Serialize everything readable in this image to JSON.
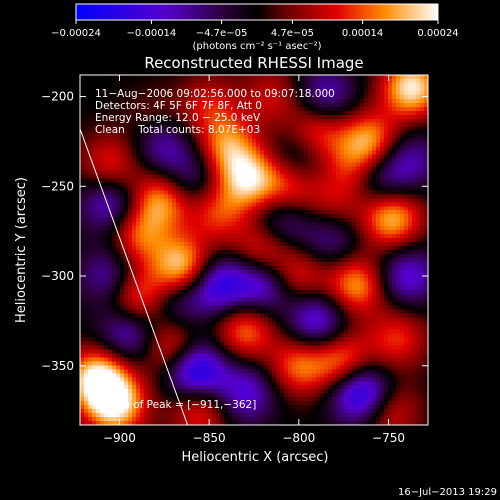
{
  "colorbar": {
    "min": -0.00024,
    "max": 0.00024,
    "ticks": [
      {
        "value": -0.00024,
        "label": "−0.00024"
      },
      {
        "value": -0.00014,
        "label": "−0.00014"
      },
      {
        "value": -4.7e-05,
        "label": "−4.7e−05"
      },
      {
        "value": 4.7e-05,
        "label": "4.7e−05"
      },
      {
        "value": 0.00014,
        "label": "0.00014"
      },
      {
        "value": 0.00024,
        "label": "0.00024"
      }
    ],
    "unit_label": "(photons cm⁻² s⁻¹ asec⁻²)"
  },
  "chart_data": {
    "type": "heatmap",
    "title": "Reconstructed RHESSI Image",
    "xlabel": "Heliocentric X (arcsec)",
    "ylabel": "Heliocentric Y (arcsec)",
    "xlim": [
      -922,
      -728
    ],
    "ylim": [
      -383,
      -188
    ],
    "xticks": [
      {
        "value": -900,
        "label": "−900"
      },
      {
        "value": -850,
        "label": "−850"
      },
      {
        "value": -800,
        "label": "−800"
      },
      {
        "value": -750,
        "label": "−750"
      }
    ],
    "yticks": [
      {
        "value": -200,
        "label": "−200"
      },
      {
        "value": -250,
        "label": "−250"
      },
      {
        "value": -300,
        "label": "−300"
      },
      {
        "value": -350,
        "label": "−350"
      }
    ],
    "limb_line": [
      {
        "x": -922,
        "y": -218
      },
      {
        "x": -862,
        "y": -383
      }
    ],
    "blobs": [
      {
        "x": -912,
        "y": -357,
        "w": 0.00024
      },
      {
        "x": -902,
        "y": -372,
        "w": 0.00022
      },
      {
        "x": -890,
        "y": -312,
        "w": 0.00017
      },
      {
        "x": -870,
        "y": -340,
        "w": 0.00016
      },
      {
        "x": -865,
        "y": -295,
        "w": 0.00022
      },
      {
        "x": -877,
        "y": -258,
        "w": 0.00018
      },
      {
        "x": -890,
        "y": -278,
        "w": 0.00014
      },
      {
        "x": -905,
        "y": -238,
        "w": 0.00012
      },
      {
        "x": -840,
        "y": -228,
        "w": 0.00016
      },
      {
        "x": -828,
        "y": -246,
        "w": 0.0002
      },
      {
        "x": -845,
        "y": -265,
        "w": 0.00012
      },
      {
        "x": -805,
        "y": -250,
        "w": 0.00014
      },
      {
        "x": -790,
        "y": -220,
        "w": 0.00014
      },
      {
        "x": -760,
        "y": -225,
        "w": 0.00018
      },
      {
        "x": -737,
        "y": -195,
        "w": 0.00023
      },
      {
        "x": -748,
        "y": -268,
        "w": 0.0002
      },
      {
        "x": -768,
        "y": -305,
        "w": 0.00018
      },
      {
        "x": -800,
        "y": -300,
        "w": 0.00012
      },
      {
        "x": -820,
        "y": -285,
        "w": 0.00014
      },
      {
        "x": -830,
        "y": -330,
        "w": 0.00016
      },
      {
        "x": -800,
        "y": -350,
        "w": 0.00015
      },
      {
        "x": -775,
        "y": -348,
        "w": 0.00017
      },
      {
        "x": -745,
        "y": -335,
        "w": 0.00012
      },
      {
        "x": -750,
        "y": -375,
        "w": 0.00012
      },
      {
        "x": -855,
        "y": -375,
        "w": 0.00013
      },
      {
        "x": -850,
        "y": -205,
        "w": 0.0001
      },
      {
        "x": -815,
        "y": -200,
        "w": 9e-05
      },
      {
        "x": -780,
        "y": -260,
        "w": 8e-05
      },
      {
        "x": -770,
        "y": -240,
        "w": 0.0001
      },
      {
        "x": -880,
        "y": -215,
        "w": 8e-05
      },
      {
        "x": -845,
        "y": -305,
        "w": -0.00018
      },
      {
        "x": -858,
        "y": -352,
        "w": -0.00024
      },
      {
        "x": -877,
        "y": -225,
        "w": -0.00014
      },
      {
        "x": -895,
        "y": -332,
        "w": -0.00014
      },
      {
        "x": -820,
        "y": -305,
        "w": -0.00016
      },
      {
        "x": -830,
        "y": -365,
        "w": -0.00014
      },
      {
        "x": -790,
        "y": -325,
        "w": -0.00016
      },
      {
        "x": -765,
        "y": -365,
        "w": -0.00024
      },
      {
        "x": -740,
        "y": -300,
        "w": -0.00014
      },
      {
        "x": -755,
        "y": -245,
        "w": -0.00012
      },
      {
        "x": -785,
        "y": -200,
        "w": -0.00012
      },
      {
        "x": -800,
        "y": -235,
        "w": -0.0001
      },
      {
        "x": -810,
        "y": -270,
        "w": -0.00012
      },
      {
        "x": -860,
        "y": -245,
        "w": -0.0001
      },
      {
        "x": -905,
        "y": -260,
        "w": -0.00014
      },
      {
        "x": -905,
        "y": -300,
        "w": -0.00012
      },
      {
        "x": -738,
        "y": -235,
        "w": -0.0001
      },
      {
        "x": -782,
        "y": -280,
        "w": -0.0001
      },
      {
        "x": -868,
        "y": -315,
        "w": -0.0001
      }
    ],
    "annotations": [
      "11−Aug−2006 09:02:56.000 to 09:07:18.000",
      "Detectors: 4F 5F 6F 7F 8F, Att 0",
      "Energy Range: 12.0 − 25.0 keV",
      "Clean    Total counts: 8.07E+03"
    ],
    "peak_label": "Position of Peak = [−911,−362]"
  },
  "footer": {
    "timestamp": "16−Jul−2013 19:29"
  }
}
